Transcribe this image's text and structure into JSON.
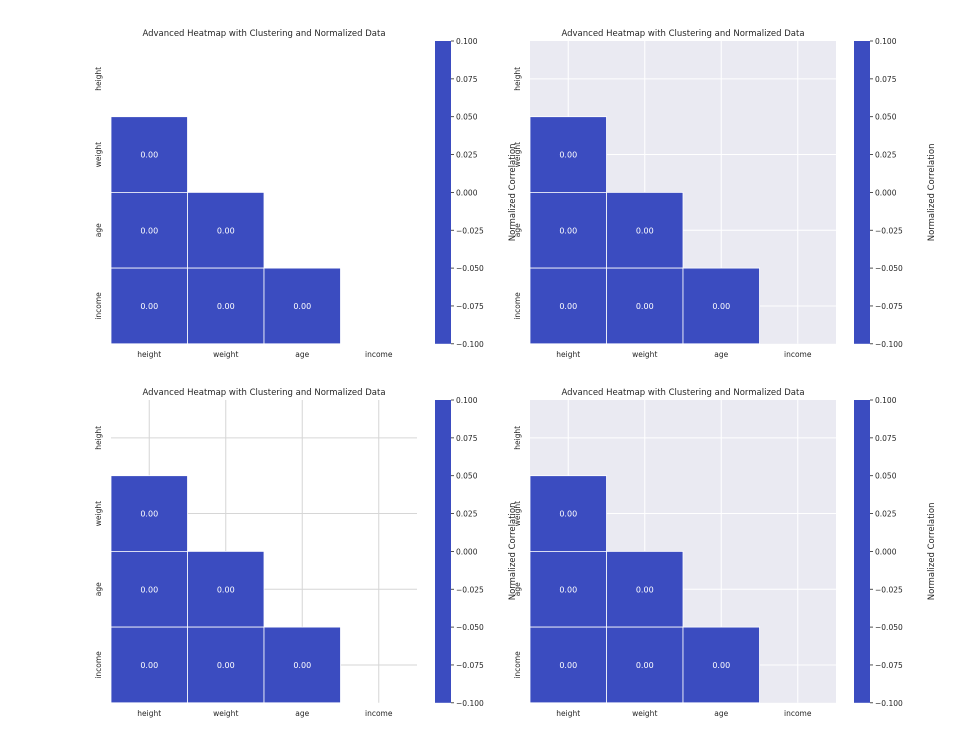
{
  "chart_data": [
    {
      "type": "heatmap",
      "style": "white-background",
      "grid": false,
      "title": "Advanced Heatmap with Clustering and Normalized Data",
      "xlabels": [
        "height",
        "weight",
        "age",
        "income"
      ],
      "ylabels": [
        "height",
        "weight",
        "age",
        "income"
      ],
      "mask": "upper-triangle-including-diagonal",
      "cells": [
        {
          "row": "weight",
          "col": "height",
          "value": 0.0,
          "label": "0.00"
        },
        {
          "row": "age",
          "col": "height",
          "value": 0.0,
          "label": "0.00"
        },
        {
          "row": "age",
          "col": "weight",
          "value": 0.0,
          "label": "0.00"
        },
        {
          "row": "income",
          "col": "height",
          "value": 0.0,
          "label": "0.00"
        },
        {
          "row": "income",
          "col": "weight",
          "value": 0.0,
          "label": "0.00"
        },
        {
          "row": "income",
          "col": "age",
          "value": 0.0,
          "label": "0.00"
        }
      ],
      "colorbar": {
        "label": "Normalized Correlation",
        "range": [
          -0.1,
          0.1
        ],
        "ticks": [
          "0.100",
          "0.075",
          "0.050",
          "0.025",
          "0.000",
          "−0.025",
          "−0.050",
          "−0.075",
          "−0.100"
        ]
      }
    },
    {
      "type": "heatmap",
      "style": "darkgrid",
      "grid": true,
      "title": "Advanced Heatmap with Clustering and Normalized Data",
      "xlabels": [
        "height",
        "weight",
        "age",
        "income"
      ],
      "ylabels": [
        "height",
        "weight",
        "age",
        "income"
      ],
      "mask": "upper-triangle-including-diagonal",
      "cells": [
        {
          "row": "weight",
          "col": "height",
          "value": 0.0,
          "label": "0.00"
        },
        {
          "row": "age",
          "col": "height",
          "value": 0.0,
          "label": "0.00"
        },
        {
          "row": "age",
          "col": "weight",
          "value": 0.0,
          "label": "0.00"
        },
        {
          "row": "income",
          "col": "height",
          "value": 0.0,
          "label": "0.00"
        },
        {
          "row": "income",
          "col": "weight",
          "value": 0.0,
          "label": "0.00"
        },
        {
          "row": "income",
          "col": "age",
          "value": 0.0,
          "label": "0.00"
        }
      ],
      "colorbar": {
        "label": "Normalized Correlation",
        "range": [
          -0.1,
          0.1
        ],
        "ticks": [
          "0.100",
          "0.075",
          "0.050",
          "0.025",
          "0.000",
          "−0.025",
          "−0.050",
          "−0.075",
          "−0.100"
        ]
      }
    },
    {
      "type": "heatmap",
      "style": "whitegrid",
      "grid": true,
      "title": "Advanced Heatmap with Clustering and Normalized Data",
      "xlabels": [
        "height",
        "weight",
        "age",
        "income"
      ],
      "ylabels": [
        "height",
        "weight",
        "age",
        "income"
      ],
      "mask": "upper-triangle-including-diagonal",
      "cells": [
        {
          "row": "weight",
          "col": "height",
          "value": 0.0,
          "label": "0.00"
        },
        {
          "row": "age",
          "col": "height",
          "value": 0.0,
          "label": "0.00"
        },
        {
          "row": "age",
          "col": "weight",
          "value": 0.0,
          "label": "0.00"
        },
        {
          "row": "income",
          "col": "height",
          "value": 0.0,
          "label": "0.00"
        },
        {
          "row": "income",
          "col": "weight",
          "value": 0.0,
          "label": "0.00"
        },
        {
          "row": "income",
          "col": "age",
          "value": 0.0,
          "label": "0.00"
        }
      ],
      "colorbar": {
        "label": "Normalized Correlation",
        "range": [
          -0.1,
          0.1
        ],
        "ticks": [
          "0.100",
          "0.075",
          "0.050",
          "0.025",
          "0.000",
          "−0.025",
          "−0.050",
          "−0.075",
          "−0.100"
        ]
      }
    },
    {
      "type": "heatmap",
      "style": "darkgrid",
      "grid": true,
      "title": "Advanced Heatmap with Clustering and Normalized Data",
      "xlabels": [
        "height",
        "weight",
        "age",
        "income"
      ],
      "ylabels": [
        "height",
        "weight",
        "age",
        "income"
      ],
      "mask": "upper-triangle-including-diagonal",
      "cells": [
        {
          "row": "weight",
          "col": "height",
          "value": 0.0,
          "label": "0.00"
        },
        {
          "row": "age",
          "col": "height",
          "value": 0.0,
          "label": "0.00"
        },
        {
          "row": "age",
          "col": "weight",
          "value": 0.0,
          "label": "0.00"
        },
        {
          "row": "income",
          "col": "height",
          "value": 0.0,
          "label": "0.00"
        },
        {
          "row": "income",
          "col": "weight",
          "value": 0.0,
          "label": "0.00"
        },
        {
          "row": "income",
          "col": "age",
          "value": 0.0,
          "label": "0.00"
        }
      ],
      "colorbar": {
        "label": "Normalized Correlation",
        "range": [
          -0.1,
          0.1
        ],
        "ticks": [
          "0.100",
          "0.075",
          "0.050",
          "0.025",
          "0.000",
          "−0.025",
          "−0.050",
          "−0.075",
          "−0.100"
        ]
      }
    }
  ],
  "colors": {
    "cell": "#3b4cc0",
    "cell_border": "#ffffff",
    "darkgrid_bg": "#eaeaf2",
    "darkgrid_line": "#ffffff",
    "whitegrid_line": "#d6d6d6"
  }
}
